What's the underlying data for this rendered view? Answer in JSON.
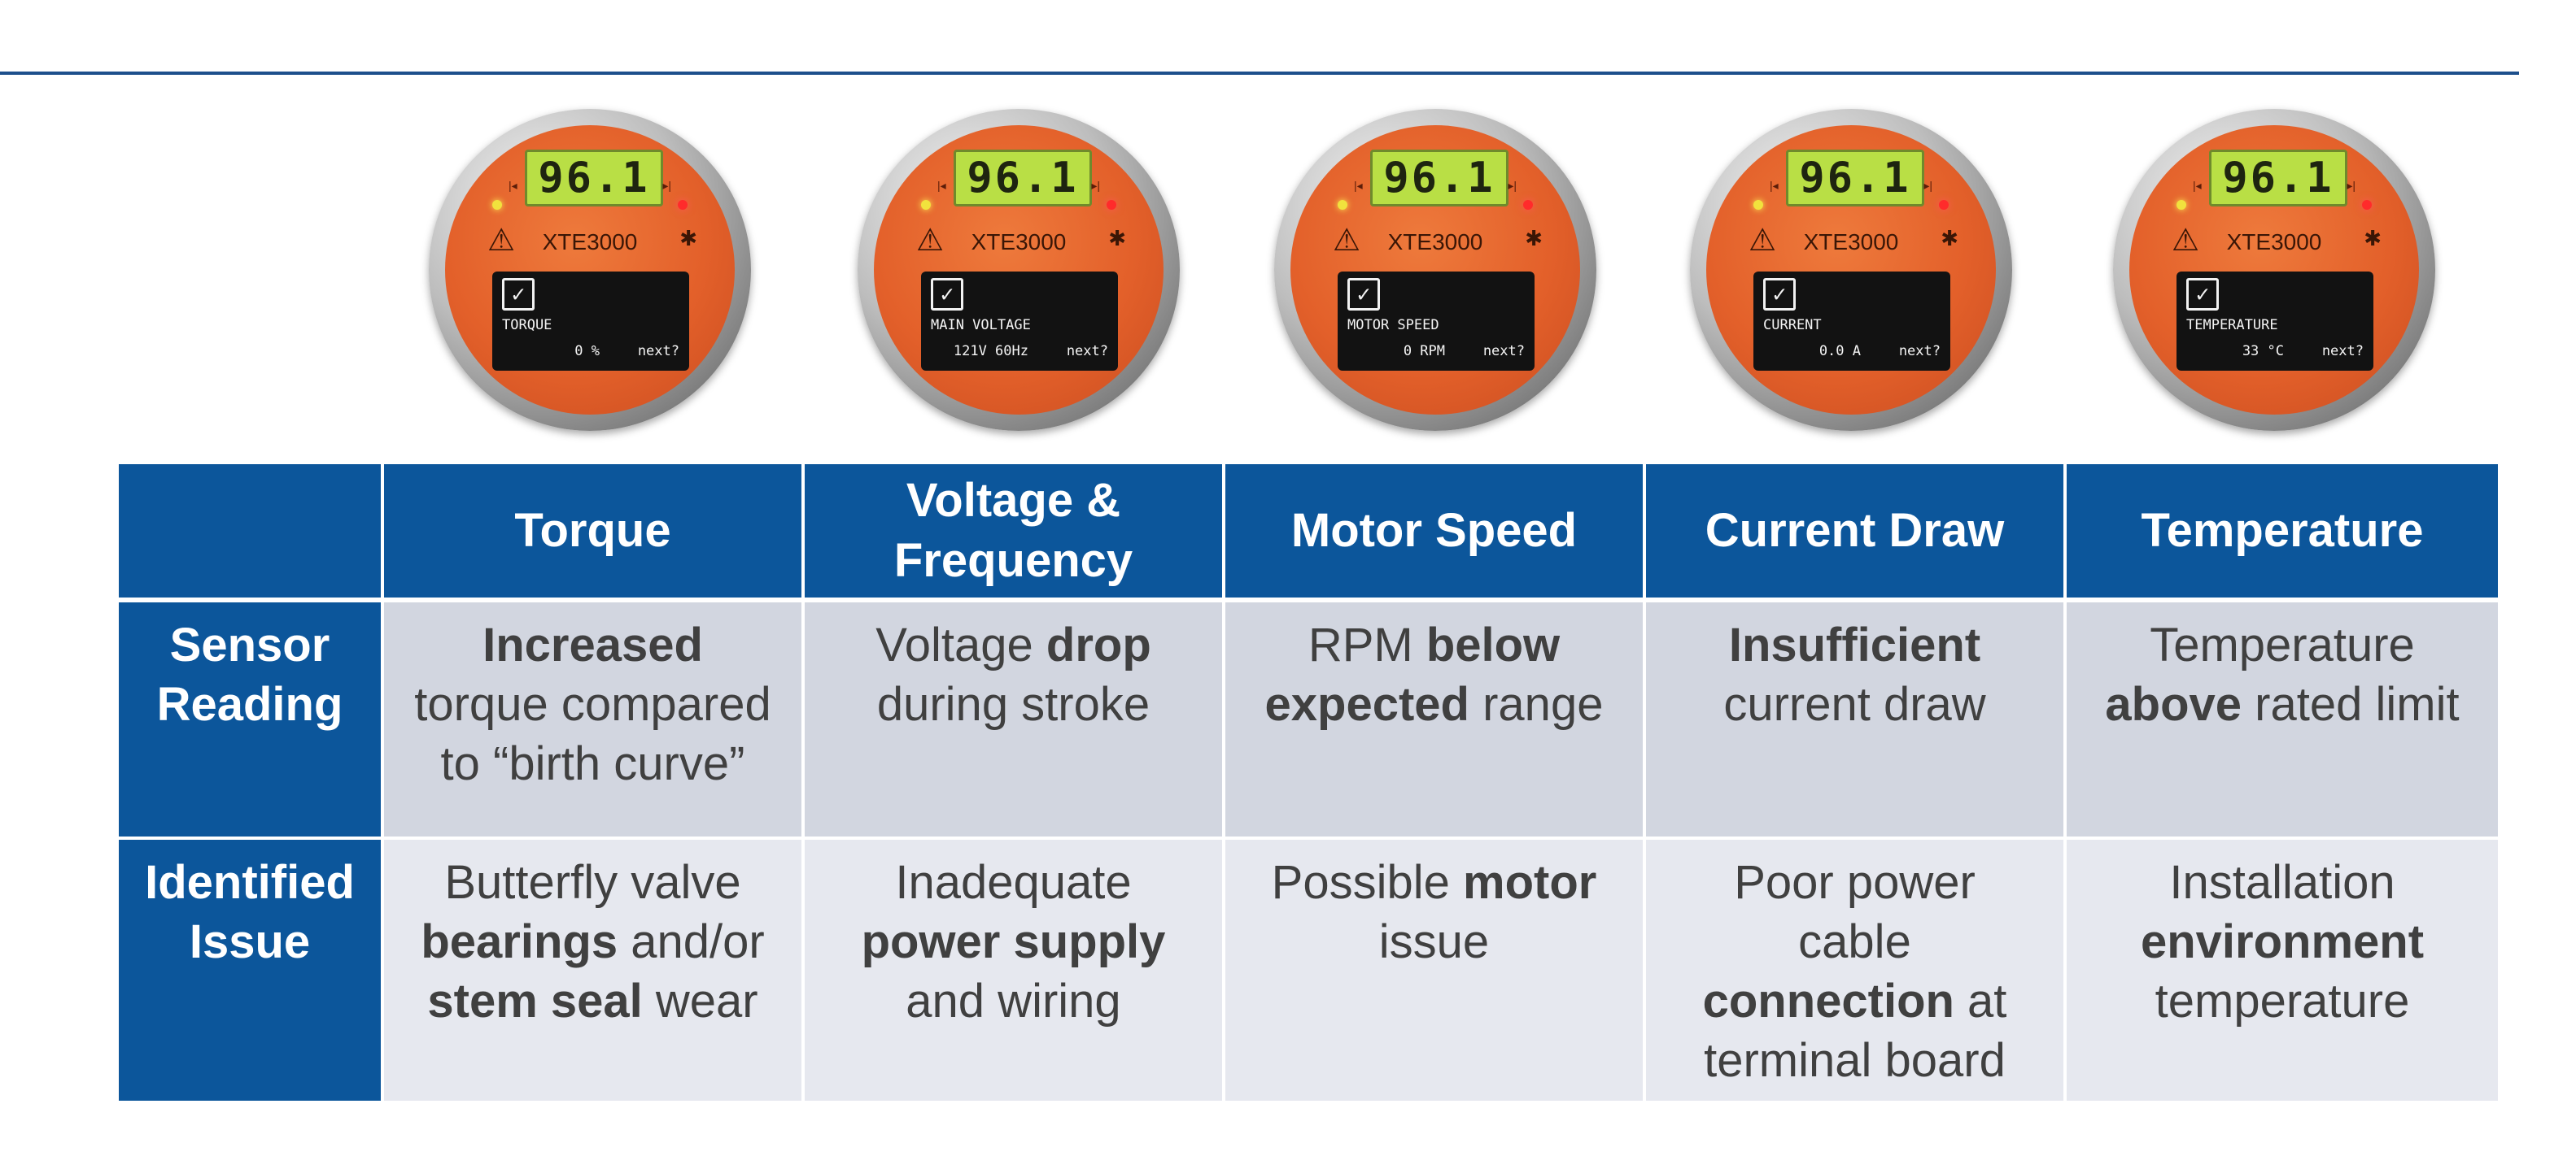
{
  "gauges": [
    {
      "display": "96.1",
      "model": "XTE3000",
      "label": "TORQUE",
      "value": "0 %",
      "next": "next?"
    },
    {
      "display": "96.1",
      "model": "XTE3000",
      "label": "MAIN VOLTAGE",
      "value": "121V 60Hz",
      "next": "next?"
    },
    {
      "display": "96.1",
      "model": "XTE3000",
      "label": "MOTOR SPEED",
      "value": "0 RPM",
      "next": "next?"
    },
    {
      "display": "96.1",
      "model": "XTE3000",
      "label": "CURRENT",
      "value": "0.0 A",
      "next": "next?"
    },
    {
      "display": "96.1",
      "model": "XTE3000",
      "label": "TEMPERATURE",
      "value": "33 °C",
      "next": "next?"
    }
  ],
  "table": {
    "headers": [
      "Torque",
      "Voltage &",
      "Frequency",
      "Motor Speed",
      "Current Draw",
      "Temperature"
    ],
    "row_labels": {
      "sensor": [
        "Sensor",
        "Reading"
      ],
      "issue": [
        "Identified",
        "Issue"
      ]
    },
    "sensor_reading": {
      "torque": {
        "b1": "Increased",
        "t1": "torque compared",
        "t2": "to “birth curve”"
      },
      "voltage": {
        "t1": "Voltage ",
        "b1": "drop",
        "t2": "during stroke"
      },
      "motor": {
        "t1": "RPM ",
        "b1": "below",
        "b2": "expected",
        "t2": " range"
      },
      "current": {
        "b1": "Insufficient",
        "t1": "current draw"
      },
      "temperature": {
        "t1": "Temperature",
        "b1": "above",
        "t2": " rated limit"
      }
    },
    "identified_issue": {
      "torque": {
        "t1": "Butterfly valve",
        "b1": "bearings",
        "t2": " and/or",
        "b2": "stem seal",
        "t3": " wear"
      },
      "voltage": {
        "t1": "Inadequate",
        "b1": "power supply",
        "t2": "and wiring"
      },
      "motor": {
        "t1": "Possible ",
        "b1": "motor",
        "t2": "issue"
      },
      "current": {
        "t1": "Poor power",
        "t2": "cable",
        "b1": "connection",
        "t3": " at",
        "t4": "terminal board"
      },
      "temperature": {
        "t1": "Installation",
        "b1": "environment",
        "t2": "temperature"
      }
    }
  },
  "colors": {
    "header_blue": "#0c569b",
    "row1": "#d2d6e0",
    "row2": "#e6e8ef",
    "gauge_orange": "#e3602a",
    "lcd_green": "#b9df45"
  }
}
